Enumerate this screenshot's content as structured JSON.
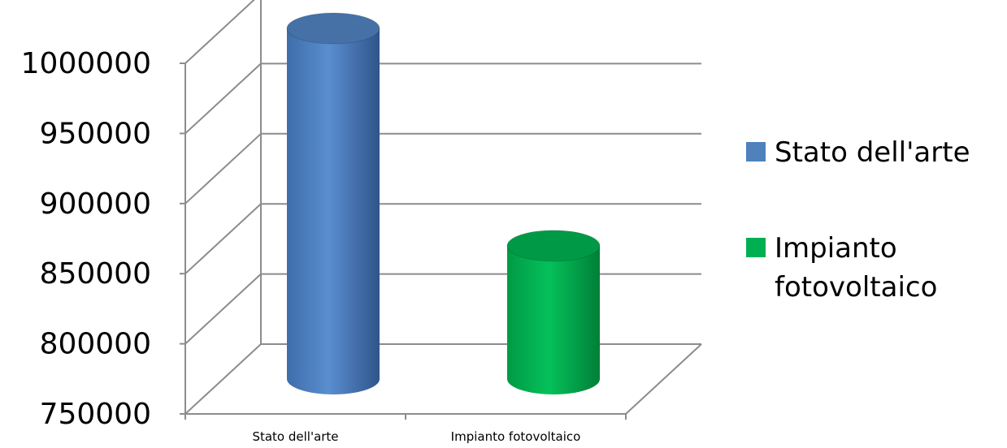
{
  "chart_data": {
    "type": "bar",
    "style": "3d-cylinder",
    "categories": [
      "Stato dell'arte",
      "Impianto fotovoltaico"
    ],
    "values": [
      1000000,
      845000
    ],
    "colors": [
      "#4F81BD",
      "#00B050"
    ],
    "ylim": [
      750000,
      1000000
    ],
    "yticks": [
      750000,
      800000,
      850000,
      900000,
      950000,
      1000000
    ],
    "grid": true,
    "legend": {
      "position": "right",
      "entries": [
        {
          "label_lines": [
            "Stato dell'arte"
          ],
          "color": "#4F81BD"
        },
        {
          "label_lines": [
            "Impianto",
            "fotovoltaico"
          ],
          "color": "#00B050"
        }
      ]
    }
  }
}
